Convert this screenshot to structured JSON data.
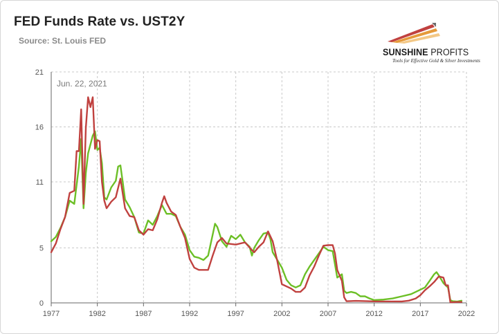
{
  "header": {
    "title": "FED Funds Rate vs. UST2Y",
    "source": "Source: St. Louis FED"
  },
  "logo": {
    "name_bold": "SUNSHINE",
    "name_thin": " PROFITS",
    "tagline": "Tools for Effective Gold & Silver Investments"
  },
  "colors": {
    "ust2y": "#6cbf26",
    "fedfunds": "#c0413f",
    "grid": "#c8c8c8",
    "axis": "#666666"
  },
  "chart_data": {
    "type": "line",
    "title": "FED Funds Rate vs. UST2Y",
    "annotation": "Jun. 22, 2021",
    "xlim": [
      1977,
      2022
    ],
    "ylim": [
      0,
      21
    ],
    "x_ticks": [
      1977,
      1982,
      1987,
      1992,
      1997,
      2002,
      2007,
      2012,
      2017,
      2022
    ],
    "y_ticks": [
      0,
      5,
      11,
      16,
      21
    ],
    "grid": true,
    "series": [
      {
        "color": "#6cbf26",
        "points": [
          [
            1977.0,
            5.6
          ],
          [
            1977.5,
            6.0
          ],
          [
            1978.0,
            6.8
          ],
          [
            1978.5,
            7.8
          ],
          [
            1979.0,
            9.3
          ],
          [
            1979.5,
            9.0
          ],
          [
            1980.0,
            12.4
          ],
          [
            1980.25,
            14.9
          ],
          [
            1980.5,
            8.6
          ],
          [
            1980.75,
            11.8
          ],
          [
            1981.0,
            13.6
          ],
          [
            1981.5,
            15.2
          ],
          [
            1981.75,
            15.6
          ],
          [
            1982.0,
            13.9
          ],
          [
            1982.25,
            14.1
          ],
          [
            1982.5,
            12.7
          ],
          [
            1982.75,
            9.6
          ],
          [
            1983.0,
            9.4
          ],
          [
            1983.5,
            10.5
          ],
          [
            1984.0,
            11.1
          ],
          [
            1984.25,
            12.4
          ],
          [
            1984.5,
            12.5
          ],
          [
            1984.75,
            11.0
          ],
          [
            1985.0,
            9.4
          ],
          [
            1985.5,
            8.7
          ],
          [
            1986.0,
            7.8
          ],
          [
            1986.5,
            6.4
          ],
          [
            1987.0,
            6.3
          ],
          [
            1987.5,
            7.5
          ],
          [
            1988.0,
            7.1
          ],
          [
            1988.5,
            7.9
          ],
          [
            1989.0,
            8.9
          ],
          [
            1989.5,
            8.1
          ],
          [
            1990.0,
            8.1
          ],
          [
            1990.5,
            7.9
          ],
          [
            1991.0,
            6.9
          ],
          [
            1991.5,
            6.2
          ],
          [
            1992.0,
            4.8
          ],
          [
            1992.5,
            4.2
          ],
          [
            1993.0,
            4.1
          ],
          [
            1993.5,
            3.9
          ],
          [
            1994.0,
            4.3
          ],
          [
            1994.5,
            6.2
          ],
          [
            1994.75,
            7.2
          ],
          [
            1995.0,
            6.9
          ],
          [
            1995.5,
            5.6
          ],
          [
            1996.0,
            5.1
          ],
          [
            1996.5,
            6.1
          ],
          [
            1997.0,
            5.8
          ],
          [
            1997.5,
            6.2
          ],
          [
            1998.0,
            5.5
          ],
          [
            1998.5,
            5.1
          ],
          [
            1998.75,
            4.3
          ],
          [
            1999.0,
            5.0
          ],
          [
            1999.5,
            5.7
          ],
          [
            2000.0,
            6.3
          ],
          [
            2000.5,
            6.4
          ],
          [
            2000.75,
            5.8
          ],
          [
            2001.0,
            4.6
          ],
          [
            2001.5,
            3.9
          ],
          [
            2002.0,
            3.2
          ],
          [
            2002.5,
            2.1
          ],
          [
            2003.0,
            1.6
          ],
          [
            2003.5,
            1.4
          ],
          [
            2004.0,
            1.6
          ],
          [
            2004.5,
            2.6
          ],
          [
            2005.0,
            3.3
          ],
          [
            2005.5,
            3.9
          ],
          [
            2006.0,
            4.5
          ],
          [
            2006.5,
            5.1
          ],
          [
            2007.0,
            4.8
          ],
          [
            2007.5,
            4.7
          ],
          [
            2008.0,
            2.3
          ],
          [
            2008.5,
            2.6
          ],
          [
            2008.75,
            1.1
          ],
          [
            2009.0,
            0.9
          ],
          [
            2009.5,
            1.0
          ],
          [
            2010.0,
            0.9
          ],
          [
            2010.5,
            0.6
          ],
          [
            2011.0,
            0.6
          ],
          [
            2011.5,
            0.4
          ],
          [
            2012.0,
            0.25
          ],
          [
            2013.0,
            0.3
          ],
          [
            2014.0,
            0.4
          ],
          [
            2015.0,
            0.6
          ],
          [
            2016.0,
            0.8
          ],
          [
            2017.0,
            1.2
          ],
          [
            2017.5,
            1.4
          ],
          [
            2018.0,
            2.0
          ],
          [
            2018.5,
            2.6
          ],
          [
            2018.75,
            2.8
          ],
          [
            2019.0,
            2.5
          ],
          [
            2019.5,
            1.8
          ],
          [
            2019.75,
            1.6
          ],
          [
            2020.0,
            1.4
          ],
          [
            2020.25,
            0.25
          ],
          [
            2020.5,
            0.15
          ],
          [
            2021.0,
            0.12
          ],
          [
            2021.47,
            0.2
          ]
        ]
      },
      {
        "color": "#c0413f",
        "points": [
          [
            1977.0,
            4.6
          ],
          [
            1977.5,
            5.4
          ],
          [
            1978.0,
            6.7
          ],
          [
            1978.5,
            7.8
          ],
          [
            1979.0,
            10.0
          ],
          [
            1979.5,
            10.2
          ],
          [
            1979.75,
            13.8
          ],
          [
            1980.0,
            13.8
          ],
          [
            1980.25,
            17.6
          ],
          [
            1980.5,
            9.0
          ],
          [
            1980.75,
            15.9
          ],
          [
            1981.0,
            18.7
          ],
          [
            1981.25,
            17.8
          ],
          [
            1981.5,
            18.7
          ],
          [
            1981.75,
            14.0
          ],
          [
            1982.0,
            14.8
          ],
          [
            1982.25,
            14.7
          ],
          [
            1982.5,
            11.0
          ],
          [
            1982.75,
            9.3
          ],
          [
            1983.0,
            8.6
          ],
          [
            1983.5,
            9.2
          ],
          [
            1984.0,
            9.6
          ],
          [
            1984.5,
            11.3
          ],
          [
            1985.0,
            8.6
          ],
          [
            1985.5,
            7.9
          ],
          [
            1986.0,
            7.8
          ],
          [
            1986.5,
            6.6
          ],
          [
            1987.0,
            6.2
          ],
          [
            1987.5,
            6.7
          ],
          [
            1988.0,
            6.6
          ],
          [
            1988.5,
            7.6
          ],
          [
            1989.0,
            9.1
          ],
          [
            1989.25,
            9.7
          ],
          [
            1989.5,
            9.1
          ],
          [
            1990.0,
            8.3
          ],
          [
            1990.5,
            8.0
          ],
          [
            1991.0,
            6.9
          ],
          [
            1991.5,
            5.9
          ],
          [
            1992.0,
            4.0
          ],
          [
            1992.5,
            3.2
          ],
          [
            1993.0,
            3.0
          ],
          [
            1994.0,
            3.0
          ],
          [
            1994.5,
            4.3
          ],
          [
            1995.0,
            5.5
          ],
          [
            1995.5,
            5.9
          ],
          [
            1996.0,
            5.4
          ],
          [
            1997.0,
            5.3
          ],
          [
            1998.0,
            5.5
          ],
          [
            1998.75,
            4.8
          ],
          [
            1999.0,
            4.6
          ],
          [
            1999.5,
            5.1
          ],
          [
            2000.0,
            5.5
          ],
          [
            2000.5,
            6.5
          ],
          [
            2001.0,
            5.6
          ],
          [
            2001.5,
            3.8
          ],
          [
            2002.0,
            1.7
          ],
          [
            2003.0,
            1.3
          ],
          [
            2003.5,
            1.0
          ],
          [
            2004.0,
            1.0
          ],
          [
            2004.5,
            1.4
          ],
          [
            2005.0,
            2.5
          ],
          [
            2005.5,
            3.3
          ],
          [
            2006.0,
            4.3
          ],
          [
            2006.5,
            5.2
          ],
          [
            2007.0,
            5.25
          ],
          [
            2007.5,
            5.25
          ],
          [
            2007.75,
            4.5
          ],
          [
            2008.0,
            3.0
          ],
          [
            2008.5,
            2.0
          ],
          [
            2008.75,
            0.5
          ],
          [
            2009.0,
            0.15
          ],
          [
            2010.0,
            0.18
          ],
          [
            2012.0,
            0.14
          ],
          [
            2015.0,
            0.13
          ],
          [
            2015.75,
            0.2
          ],
          [
            2016.5,
            0.4
          ],
          [
            2017.0,
            0.7
          ],
          [
            2017.5,
            1.15
          ],
          [
            2018.0,
            1.5
          ],
          [
            2018.5,
            1.9
          ],
          [
            2019.0,
            2.4
          ],
          [
            2019.5,
            2.3
          ],
          [
            2019.75,
            1.6
          ],
          [
            2020.0,
            1.6
          ],
          [
            2020.25,
            0.05
          ],
          [
            2021.0,
            0.08
          ],
          [
            2021.47,
            0.08
          ]
        ]
      }
    ]
  }
}
